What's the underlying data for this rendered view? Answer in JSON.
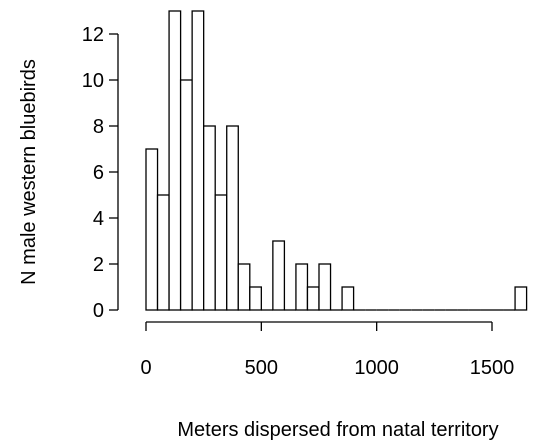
{
  "chart_data": {
    "type": "bar",
    "subtype": "histogram",
    "xlabel": "Meters dispersed from natal territory",
    "ylabel": "N male western bluebirds",
    "bin_width": 50,
    "x_range": [
      0,
      1650
    ],
    "ylim": [
      0,
      13
    ],
    "x_ticks": [
      0,
      500,
      1000,
      1500
    ],
    "x_tick_labels": [
      "0",
      "500",
      "1000",
      "1500"
    ],
    "y_ticks": [
      0,
      2,
      4,
      6,
      8,
      10,
      12
    ],
    "y_tick_labels": [
      "0",
      "2",
      "4",
      "6",
      "8",
      "10",
      "12"
    ],
    "bins": [
      {
        "x0": 0,
        "x1": 50,
        "count": 7
      },
      {
        "x0": 50,
        "x1": 100,
        "count": 5
      },
      {
        "x0": 100,
        "x1": 150,
        "count": 13
      },
      {
        "x0": 150,
        "x1": 200,
        "count": 10
      },
      {
        "x0": 200,
        "x1": 250,
        "count": 13
      },
      {
        "x0": 250,
        "x1": 300,
        "count": 8
      },
      {
        "x0": 300,
        "x1": 350,
        "count": 5
      },
      {
        "x0": 350,
        "x1": 400,
        "count": 8
      },
      {
        "x0": 400,
        "x1": 450,
        "count": 2
      },
      {
        "x0": 450,
        "x1": 500,
        "count": 1
      },
      {
        "x0": 500,
        "x1": 550,
        "count": 0
      },
      {
        "x0": 550,
        "x1": 600,
        "count": 3
      },
      {
        "x0": 600,
        "x1": 650,
        "count": 0
      },
      {
        "x0": 650,
        "x1": 700,
        "count": 2
      },
      {
        "x0": 700,
        "x1": 750,
        "count": 1
      },
      {
        "x0": 750,
        "x1": 800,
        "count": 2
      },
      {
        "x0": 800,
        "x1": 850,
        "count": 0
      },
      {
        "x0": 850,
        "x1": 900,
        "count": 1
      },
      {
        "x0": 900,
        "x1": 950,
        "count": 0
      },
      {
        "x0": 950,
        "x1": 1000,
        "count": 0
      },
      {
        "x0": 1000,
        "x1": 1050,
        "count": 0
      },
      {
        "x0": 1050,
        "x1": 1100,
        "count": 0
      },
      {
        "x0": 1100,
        "x1": 1150,
        "count": 0
      },
      {
        "x0": 1150,
        "x1": 1200,
        "count": 0
      },
      {
        "x0": 1200,
        "x1": 1250,
        "count": 0
      },
      {
        "x0": 1250,
        "x1": 1300,
        "count": 0
      },
      {
        "x0": 1300,
        "x1": 1350,
        "count": 0
      },
      {
        "x0": 1350,
        "x1": 1400,
        "count": 0
      },
      {
        "x0": 1400,
        "x1": 1450,
        "count": 0
      },
      {
        "x0": 1450,
        "x1": 1500,
        "count": 0
      },
      {
        "x0": 1500,
        "x1": 1550,
        "count": 0
      },
      {
        "x0": 1550,
        "x1": 1600,
        "count": 0
      },
      {
        "x0": 1600,
        "x1": 1650,
        "count": 1
      }
    ],
    "bar_fill": "#ffffff",
    "bar_stroke": "#000000",
    "grid": false,
    "legend": "none"
  }
}
